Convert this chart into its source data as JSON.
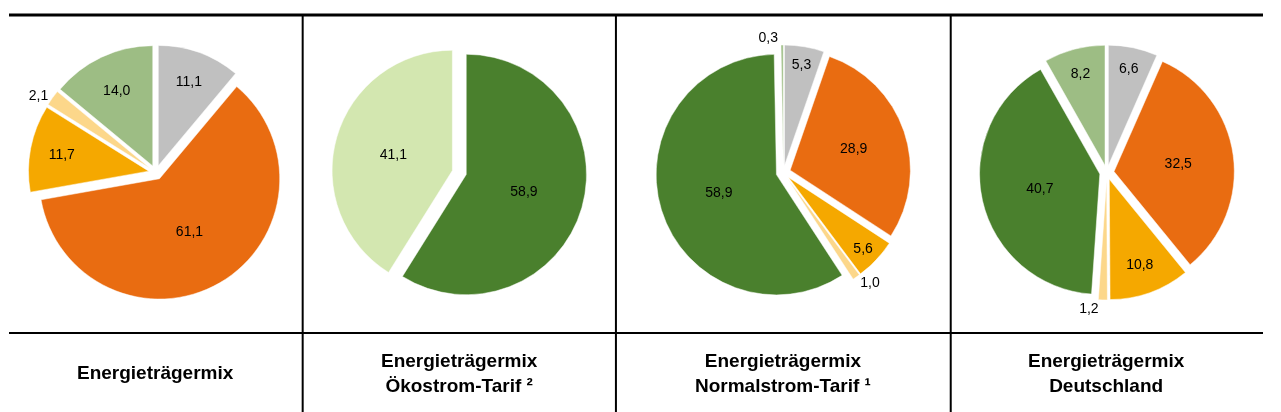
{
  "chart_data": [
    {
      "type": "pie",
      "title": "Energieträgermix",
      "categories": [
        null,
        null,
        null,
        null,
        null
      ],
      "values": [
        11.1,
        61.1,
        11.7,
        2.1,
        14.0
      ],
      "value_labels": [
        "11,1",
        "61,1",
        "11,7",
        "2,1",
        "14,0"
      ],
      "colors": [
        "#c0c0c0",
        "#e96c11",
        "#f5a800",
        "#fcd78a",
        "#9dbd84"
      ]
    },
    {
      "type": "pie",
      "title": "Energieträgermix\nÖkostrom-Tarif ²",
      "categories": [
        null,
        null
      ],
      "values": [
        58.9,
        41.1
      ],
      "value_labels": [
        "58,9",
        "41,1"
      ],
      "colors": [
        "#4a802d",
        "#d3e7b0"
      ]
    },
    {
      "type": "pie",
      "title": "Energieträgermix\nNormalstrom-Tarif ¹",
      "categories": [
        null,
        null,
        null,
        null,
        null,
        null
      ],
      "values": [
        5.3,
        28.9,
        5.6,
        1.0,
        58.9,
        0.3
      ],
      "value_labels": [
        "5,3",
        "28,9",
        "5,6",
        "1,0",
        "58,9",
        "0,3"
      ],
      "colors": [
        "#c0c0c0",
        "#e96c11",
        "#f5a800",
        "#fcd78a",
        "#4a802d",
        "#9dbd84"
      ]
    },
    {
      "type": "pie",
      "title": "Energieträgermix\nDeutschland",
      "categories": [
        null,
        null,
        null,
        null,
        null,
        null
      ],
      "values": [
        6.6,
        32.5,
        10.8,
        1.2,
        40.7,
        8.2
      ],
      "value_labels": [
        "6,6",
        "32,5",
        "10,8",
        "1,2",
        "40,7",
        "8,2"
      ],
      "colors": [
        "#c0c0c0",
        "#e96c11",
        "#f5a800",
        "#fcd78a",
        "#4a802d",
        "#9dbd84"
      ]
    }
  ]
}
